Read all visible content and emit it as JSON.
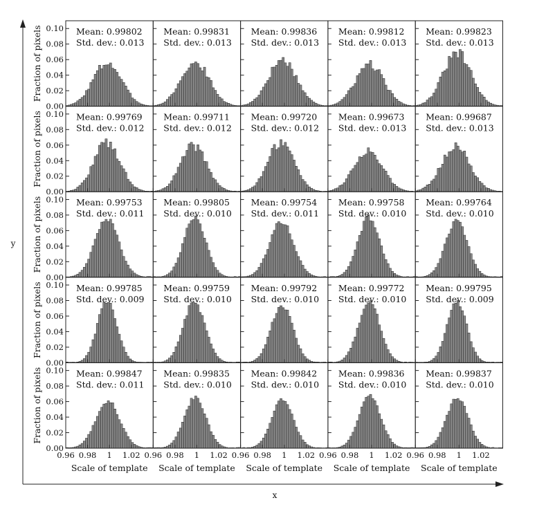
{
  "chart_data": {
    "type": "bar",
    "layout": "5x5 grid of histograms",
    "outer_xlabel": "x",
    "outer_ylabel": "y",
    "panel_ylabel": "Fraction of pixels",
    "panel_xlabel": "Scale of template",
    "xlim": [
      0.96,
      1.04
    ],
    "ylim": [
      0,
      0.11
    ],
    "xticks": [
      "0.96",
      "0.98",
      "1",
      "1.02"
    ],
    "yticks": [
      "0.00",
      "0.02",
      "0.04",
      "0.06",
      "0.08",
      "0.10"
    ],
    "stat_labels": {
      "mean": "Mean:",
      "std": "Std. dev.:"
    },
    "panels": [
      [
        {
          "mean": "0.99802",
          "std": "0.013",
          "peak": 0.056
        },
        {
          "mean": "0.99831",
          "std": "0.013",
          "peak": 0.057
        },
        {
          "mean": "0.99836",
          "std": "0.013",
          "peak": 0.06
        },
        {
          "mean": "0.99812",
          "std": "0.013",
          "peak": 0.054
        },
        {
          "mean": "0.99823",
          "std": "0.013",
          "peak": 0.068
        }
      ],
      [
        {
          "mean": "0.99769",
          "std": "0.012",
          "peak": 0.064
        },
        {
          "mean": "0.99711",
          "std": "0.012",
          "peak": 0.059
        },
        {
          "mean": "0.99720",
          "std": "0.012",
          "peak": 0.064
        },
        {
          "mean": "0.99673",
          "std": "0.013",
          "peak": 0.053
        },
        {
          "mean": "0.99687",
          "std": "0.013",
          "peak": 0.058
        }
      ],
      [
        {
          "mean": "0.99753",
          "std": "0.011",
          "peak": 0.075
        },
        {
          "mean": "0.99805",
          "std": "0.010",
          "peak": 0.078
        },
        {
          "mean": "0.99754",
          "std": "0.011",
          "peak": 0.072
        },
        {
          "mean": "0.99758",
          "std": "0.010",
          "peak": 0.077
        },
        {
          "mean": "0.99764",
          "std": "0.010",
          "peak": 0.072
        }
      ],
      [
        {
          "mean": "0.99785",
          "std": "0.009",
          "peak": 0.08
        },
        {
          "mean": "0.99759",
          "std": "0.010",
          "peak": 0.078
        },
        {
          "mean": "0.99792",
          "std": "0.010",
          "peak": 0.074
        },
        {
          "mean": "0.99772",
          "std": "0.010",
          "peak": 0.078
        },
        {
          "mean": "0.99795",
          "std": "0.009",
          "peak": 0.08
        }
      ],
      [
        {
          "mean": "0.99847",
          "std": "0.011",
          "peak": 0.061
        },
        {
          "mean": "0.99835",
          "std": "0.010",
          "peak": 0.065
        },
        {
          "mean": "0.99842",
          "std": "0.010",
          "peak": 0.062
        },
        {
          "mean": "0.99836",
          "std": "0.010",
          "peak": 0.067
        },
        {
          "mean": "0.99837",
          "std": "0.010",
          "peak": 0.065
        }
      ]
    ],
    "bin_width": 0.002,
    "bar_color": "#888888",
    "bar_edge_color": "#222222"
  }
}
